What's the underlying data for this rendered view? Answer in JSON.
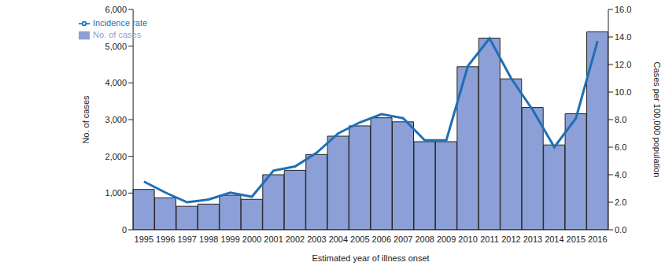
{
  "chart_data": {
    "type": "bar",
    "x_label": "Estimated year of illness onset",
    "y_label": "No. of cases",
    "y2_label": "Cases per 100,000 population",
    "categories": [
      "1995",
      "1996",
      "1997",
      "1998",
      "1999",
      "2000",
      "2001",
      "2002",
      "2003",
      "2004",
      "2005",
      "2006",
      "2007",
      "2008",
      "2009",
      "2010",
      "2011",
      "2012",
      "2013",
      "2014",
      "2015",
      "2016"
    ],
    "series": [
      {
        "name": "No. of cases",
        "type": "bar",
        "color": "#8c9fd6",
        "values": [
          1100,
          870,
          640,
          700,
          940,
          830,
          1500,
          1620,
          2050,
          2550,
          2830,
          3050,
          2940,
          2400,
          2400,
          4440,
          5220,
          4110,
          3330,
          2310,
          3160,
          5390
        ]
      },
      {
        "name": "Incidence rate",
        "type": "line",
        "axis": "y2",
        "color": "#1f6fb5",
        "marker": "none",
        "values": [
          3.5,
          2.7,
          2.0,
          2.2,
          2.7,
          2.4,
          4.3,
          4.6,
          5.6,
          7.0,
          7.8,
          8.4,
          8.1,
          6.5,
          6.5,
          11.9,
          13.9,
          11.0,
          8.7,
          6.0,
          8.1,
          13.7
        ]
      }
    ],
    "ylim": [
      0,
      6000
    ],
    "yticks": [
      0,
      {
        "value": 1000,
        "label": "1,000"
      },
      {
        "value": 2000,
        "label": "2,000"
      },
      {
        "value": 3000,
        "label": "3,000"
      },
      {
        "value": 4000,
        "label": "4,000"
      },
      {
        "value": 5000,
        "label": "5,000"
      },
      {
        "value": 6000,
        "label": "6,000"
      }
    ],
    "y2lim": [
      0,
      16
    ],
    "y2ticks": [
      {
        "value": 0,
        "label": "0.0"
      },
      {
        "value": 2,
        "label": "2.0"
      },
      {
        "value": 4,
        "label": "4.0"
      },
      {
        "value": 6,
        "label": "6.0"
      },
      {
        "value": 8,
        "label": "8.0"
      },
      {
        "value": 10,
        "label": "10.0"
      },
      {
        "value": 12,
        "label": "12.0"
      },
      {
        "value": 14,
        "label": "14.0"
      },
      {
        "value": 16,
        "label": "16.0"
      }
    ],
    "legend": "upper left",
    "grid": false
  }
}
